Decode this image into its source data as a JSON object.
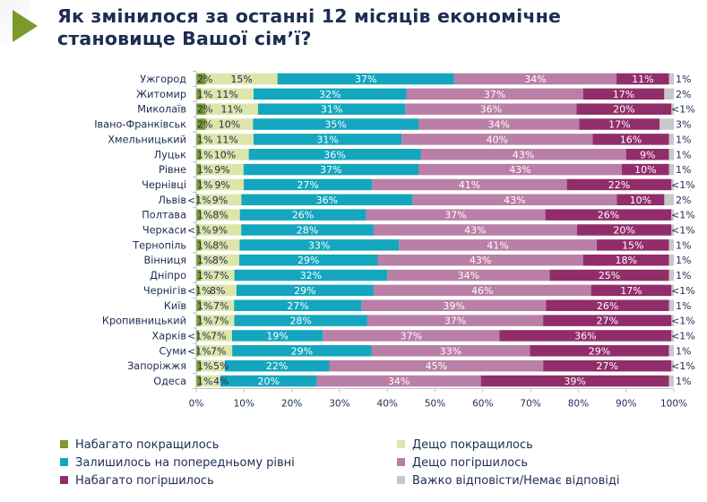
{
  "header": {
    "title_line1": "Як змінилося за останні 12 місяців економічне",
    "title_line2": "становище Вашої сім’ї?"
  },
  "chart_data": {
    "type": "bar",
    "orientation": "horizontal",
    "stacked": true,
    "title": "Як змінилося за останні 12 місяців економічне становище Вашої сім’ї?",
    "xlabel": "",
    "ylabel": "",
    "xlim": [
      0,
      100
    ],
    "x_ticks": [
      "0%",
      "10%",
      "20%",
      "30%",
      "40%",
      "50%",
      "60%",
      "70%",
      "80%",
      "90%",
      "100%"
    ],
    "grid": false,
    "legend_position": "bottom",
    "categories": [
      "Ужгород",
      "Житомир",
      "Миколаїв",
      "Івано-Франківськ",
      "Хмельницький",
      "Луцьк",
      "Рівне",
      "Чернівці",
      "Львів",
      "Полтава",
      "Черкаси",
      "Тернопіль",
      "Вінниця",
      "Дніпро",
      "Чернігів",
      "Київ",
      "Кропивницький",
      "Харків",
      "Суми",
      "Запоріжжя",
      "Одеса"
    ],
    "series": [
      {
        "name": "Набагато покращилось",
        "color": "#7a9a2e",
        "label_color": "#1c2d52",
        "values": [
          2,
          1,
          2,
          2,
          1,
          1,
          1,
          1,
          0.5,
          1,
          0.5,
          1,
          1,
          1,
          0.5,
          1,
          1,
          0.5,
          0.5,
          1,
          1
        ],
        "labels": [
          "2%",
          "1%",
          "2%",
          "2%",
          "1%",
          "1%",
          "1%",
          "1%",
          "<1%",
          "1%",
          "<1%",
          "1%",
          "1%",
          "1%",
          "<1%",
          "1%",
          "1%",
          "<1%",
          "<1%",
          "1%",
          "1%"
        ]
      },
      {
        "name": "Дещо покращилось",
        "color": "#dde5a9",
        "label_color": "#1c2d52",
        "values": [
          15,
          11,
          11,
          10,
          11,
          10,
          9,
          9,
          9,
          8,
          9,
          8,
          8,
          7,
          8,
          7,
          7,
          7,
          7,
          5,
          4
        ],
        "labels": [
          "15%",
          "11%",
          "11%",
          "10%",
          "11%",
          "10%",
          "9%",
          "9%",
          "9%",
          "8%",
          "9%",
          "8%",
          "8%",
          "7%",
          "8%",
          "7%",
          "7%",
          "7%",
          "7%",
          "5%",
          "4%"
        ]
      },
      {
        "name": "Залишилось на попередньому рівні",
        "color": "#14a6be",
        "label_color": "#ffffff",
        "values": [
          37,
          32,
          31,
          35,
          31,
          36,
          37,
          27,
          36,
          26,
          28,
          33,
          29,
          32,
          29,
          27,
          28,
          19,
          29,
          22,
          20
        ],
        "labels": [
          "37%",
          "32%",
          "31%",
          "35%",
          "31%",
          "36%",
          "37%",
          "27%",
          "36%",
          "26%",
          "28%",
          "33%",
          "29%",
          "32%",
          "29%",
          "27%",
          "28%",
          "19%",
          "29%",
          "22%",
          "20%"
        ]
      },
      {
        "name": "Дещо погіршилось",
        "color": "#b97fa6",
        "label_color": "#ffffff",
        "values": [
          34,
          37,
          36,
          34,
          40,
          43,
          43,
          41,
          43,
          37,
          43,
          41,
          43,
          34,
          46,
          39,
          37,
          37,
          33,
          45,
          34
        ],
        "labels": [
          "34%",
          "37%",
          "36%",
          "34%",
          "40%",
          "43%",
          "43%",
          "41%",
          "43%",
          "37%",
          "43%",
          "41%",
          "43%",
          "34%",
          "46%",
          "39%",
          "37%",
          "37%",
          "33%",
          "45%",
          "34%"
        ]
      },
      {
        "name": "Набагато погіршилось",
        "color": "#922d6b",
        "label_color": "#ffffff",
        "values": [
          11,
          17,
          20,
          17,
          16,
          9,
          10,
          22,
          10,
          26,
          20,
          15,
          18,
          25,
          17,
          26,
          27,
          36,
          29,
          27,
          39
        ],
        "labels": [
          "11%",
          "17%",
          "20%",
          "17%",
          "16%",
          "9%",
          "10%",
          "22%",
          "10%",
          "26%",
          "20%",
          "15%",
          "18%",
          "25%",
          "17%",
          "26%",
          "27%",
          "36%",
          "29%",
          "27%",
          "39%"
        ]
      },
      {
        "name": "Важко відповісти/Немає відповіді",
        "color": "#c8c8c8",
        "label_color": "#1c2d52",
        "values": [
          1,
          2,
          0.5,
          3,
          1,
          1,
          1,
          0.5,
          2,
          0.5,
          0.5,
          1,
          1,
          1,
          0.5,
          1,
          0.5,
          0.5,
          1,
          0.5,
          1
        ],
        "labels": [
          "1%",
          "2%",
          "<1%",
          "3%",
          "1%",
          "1%",
          "1%",
          "<1%",
          "2%",
          "<1%",
          "<1%",
          "1%",
          "1%",
          "1%",
          "<1%",
          "1%",
          "<1%",
          "<1%",
          "1%",
          "<1%",
          "1%"
        ]
      }
    ]
  },
  "legend": {
    "items": [
      {
        "label": "Набагато покращилось",
        "color": "#7a9a2e"
      },
      {
        "label": "Дещо покращилось",
        "color": "#dde5a9"
      },
      {
        "label": "Залишилось на попередньому рівні",
        "color": "#14a6be"
      },
      {
        "label": "Дещо погіршилось",
        "color": "#b97fa6"
      },
      {
        "label": "Набагато погіршилось",
        "color": "#922d6b"
      },
      {
        "label": "Важко відповісти/Немає відповіді",
        "color": "#c8c8c8"
      }
    ]
  }
}
